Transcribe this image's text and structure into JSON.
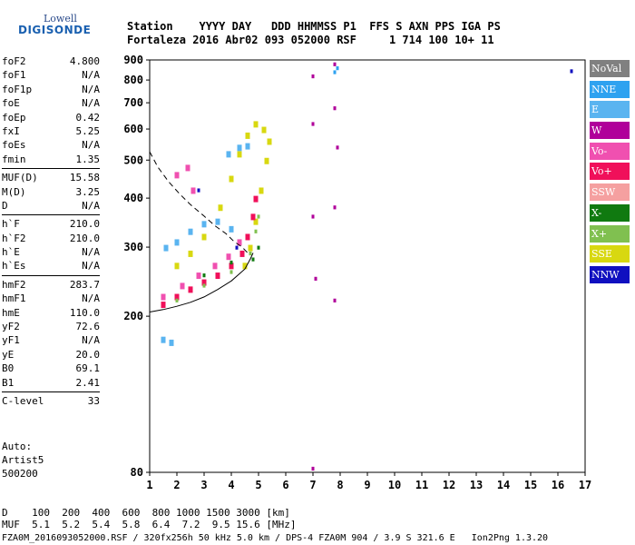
{
  "logo": {
    "top": "Lowell",
    "main": "DIGISONDE"
  },
  "header": {
    "line1": "Station    YYYY DAY   DDD HHMMSS P1  FFS S AXN PPS IGA PS",
    "line2": "Fortaleza 2016 Abr02 093 052000 RSF     1 714 100 10+ 11"
  },
  "params": {
    "group1": [
      {
        "k": "foF2",
        "v": "4.800"
      },
      {
        "k": "foF1",
        "v": "N/A"
      },
      {
        "k": "foF1p",
        "v": "N/A"
      },
      {
        "k": "foE",
        "v": "N/A"
      },
      {
        "k": "foEp",
        "v": "0.42"
      },
      {
        "k": "fxI",
        "v": "5.25"
      },
      {
        "k": "foEs",
        "v": "N/A"
      },
      {
        "k": "fmin",
        "v": "1.35"
      }
    ],
    "group2": [
      {
        "k": "MUF(D)",
        "v": "15.58"
      },
      {
        "k": "M(D)",
        "v": "3.25"
      },
      {
        "k": "D",
        "v": "N/A"
      }
    ],
    "group3": [
      {
        "k": "h`F",
        "v": "210.0"
      },
      {
        "k": "h`F2",
        "v": "210.0"
      },
      {
        "k": "h`E",
        "v": "N/A"
      },
      {
        "k": "h`Es",
        "v": "N/A"
      }
    ],
    "group4": [
      {
        "k": "hmF2",
        "v": "283.7"
      },
      {
        "k": "hmF1",
        "v": "N/A"
      },
      {
        "k": "hmE",
        "v": "110.0"
      },
      {
        "k": "yF2",
        "v": "72.6"
      },
      {
        "k": "yF1",
        "v": "N/A"
      },
      {
        "k": "yE",
        "v": "20.0"
      },
      {
        "k": "B0",
        "v": "69.1"
      },
      {
        "k": "B1",
        "v": "2.41"
      }
    ],
    "group5": [
      {
        "k": "C-level",
        "v": "33"
      }
    ]
  },
  "auto": {
    "line1": "Auto:",
    "line2": "Artist5",
    "line3": "500200"
  },
  "footer": {
    "line1": "D    100  200  400  600  800 1000 1500 3000 [km]",
    "line2": "MUF  5.1  5.2  5.4  5.8  6.4  7.2  9.5 15.6 [MHz]",
    "line3": "FZA0M_2016093052000.RSF / 320fx256h 50 kHz 5.0 km / DPS-4 FZA0M 904 / 3.9 S 321.6 E   Ion2Png 1.3.20"
  },
  "legend": [
    {
      "label": "NoVal",
      "color": "#808080"
    },
    {
      "label": "NNE",
      "color": "#2ea2f0"
    },
    {
      "label": "E",
      "color": "#5ab4f0"
    },
    {
      "label": "W",
      "color": "#b0009a"
    },
    {
      "label": "Vo-",
      "color": "#f050b0"
    },
    {
      "label": "Vo+",
      "color": "#f0105a"
    },
    {
      "label": "SSW",
      "color": "#f5a0a0"
    },
    {
      "label": "X-",
      "color": "#107a10"
    },
    {
      "label": "X+",
      "color": "#80c050"
    },
    {
      "label": "SSE",
      "color": "#d8d810"
    },
    {
      "label": "NNW",
      "color": "#1010c0"
    }
  ],
  "chart_data": {
    "type": "scatter",
    "title": "",
    "xlabel": "",
    "ylabel": "",
    "x_ticks": [
      "1",
      "2",
      "3",
      "4",
      "5",
      "6",
      "7",
      "8",
      "9",
      "10",
      "11",
      "12",
      "13",
      "14",
      "15",
      "16",
      "17"
    ],
    "y_ticks": [
      "80",
      "200",
      "300",
      "400",
      "500",
      "600",
      "700",
      "800",
      "900"
    ],
    "xlim": [
      1,
      17
    ],
    "ylim": [
      80,
      900
    ],
    "y_scale": "log",
    "grid": false,
    "legend_position": "right",
    "traces": [
      {
        "name": "SSE",
        "points": [
          [
            4.5,
            270
          ],
          [
            4.7,
            300
          ],
          [
            4.9,
            350
          ],
          [
            5.1,
            420
          ],
          [
            5.3,
            500
          ],
          [
            5.4,
            560
          ],
          [
            5.2,
            600
          ],
          [
            4.9,
            620
          ],
          [
            4.6,
            580
          ],
          [
            4.3,
            520
          ],
          [
            4.0,
            450
          ],
          [
            3.6,
            380
          ],
          [
            3.0,
            320
          ],
          [
            2.5,
            290
          ],
          [
            2.0,
            270
          ]
        ]
      },
      {
        "name": "Vo+",
        "points": [
          [
            1.5,
            215
          ],
          [
            2.0,
            225
          ],
          [
            2.5,
            235
          ],
          [
            3.0,
            245
          ],
          [
            3.5,
            255
          ],
          [
            4.0,
            270
          ],
          [
            4.4,
            290
          ],
          [
            4.6,
            320
          ],
          [
            4.8,
            360
          ],
          [
            4.9,
            400
          ]
        ]
      },
      {
        "name": "Vo-",
        "points": [
          [
            1.5,
            225
          ],
          [
            2.2,
            240
          ],
          [
            2.8,
            255
          ],
          [
            3.4,
            270
          ],
          [
            3.9,
            285
          ],
          [
            4.3,
            310
          ],
          [
            2.0,
            460
          ],
          [
            2.4,
            480
          ],
          [
            2.6,
            420
          ]
        ]
      },
      {
        "name": "E",
        "points": [
          [
            1.6,
            300
          ],
          [
            2.0,
            310
          ],
          [
            2.5,
            330
          ],
          [
            3.0,
            345
          ],
          [
            3.5,
            350
          ],
          [
            4.0,
            335
          ],
          [
            1.5,
            175
          ],
          [
            1.8,
            172
          ],
          [
            3.9,
            520
          ],
          [
            4.3,
            540
          ],
          [
            4.6,
            545
          ]
        ]
      },
      {
        "name": "X+",
        "points": [
          [
            2.0,
            220
          ],
          [
            3.0,
            240
          ],
          [
            4.0,
            260
          ],
          [
            4.7,
            290
          ],
          [
            4.9,
            330
          ],
          [
            5.0,
            360
          ]
        ]
      },
      {
        "name": "X-",
        "points": [
          [
            3.0,
            255
          ],
          [
            4.0,
            275
          ],
          [
            4.8,
            280
          ],
          [
            5.0,
            300
          ]
        ]
      },
      {
        "name": "W",
        "points": [
          [
            7.0,
            820
          ],
          [
            7.0,
            620
          ],
          [
            7.0,
            360
          ],
          [
            7.8,
            880
          ],
          [
            7.8,
            680
          ],
          [
            7.9,
            540
          ],
          [
            7.8,
            380
          ],
          [
            7.8,
            220
          ],
          [
            7.0,
            82
          ],
          [
            7.1,
            250
          ]
        ]
      },
      {
        "name": "NNE",
        "points": [
          [
            7.8,
            840
          ],
          [
            7.9,
            860
          ]
        ]
      },
      {
        "name": "NNW",
        "points": [
          [
            16.5,
            845
          ],
          [
            2.8,
            420
          ],
          [
            4.2,
            300
          ]
        ]
      }
    ],
    "fitted_curves": [
      {
        "name": "trace-fit-lower",
        "points": [
          [
            1.0,
            205
          ],
          [
            1.5,
            208
          ],
          [
            2.0,
            212
          ],
          [
            2.5,
            217
          ],
          [
            3.0,
            224
          ],
          [
            3.5,
            234
          ],
          [
            4.0,
            246
          ],
          [
            4.5,
            264
          ],
          [
            4.7,
            280
          ],
          [
            4.8,
            290
          ]
        ]
      },
      {
        "name": "profile-dashed",
        "points": [
          [
            1.0,
            525
          ],
          [
            1.3,
            480
          ],
          [
            1.7,
            440
          ],
          [
            2.1,
            410
          ],
          [
            2.5,
            385
          ],
          [
            3.0,
            360
          ],
          [
            3.4,
            340
          ],
          [
            3.8,
            325
          ],
          [
            4.1,
            310
          ],
          [
            4.4,
            300
          ],
          [
            4.6,
            290
          ]
        ]
      }
    ]
  }
}
